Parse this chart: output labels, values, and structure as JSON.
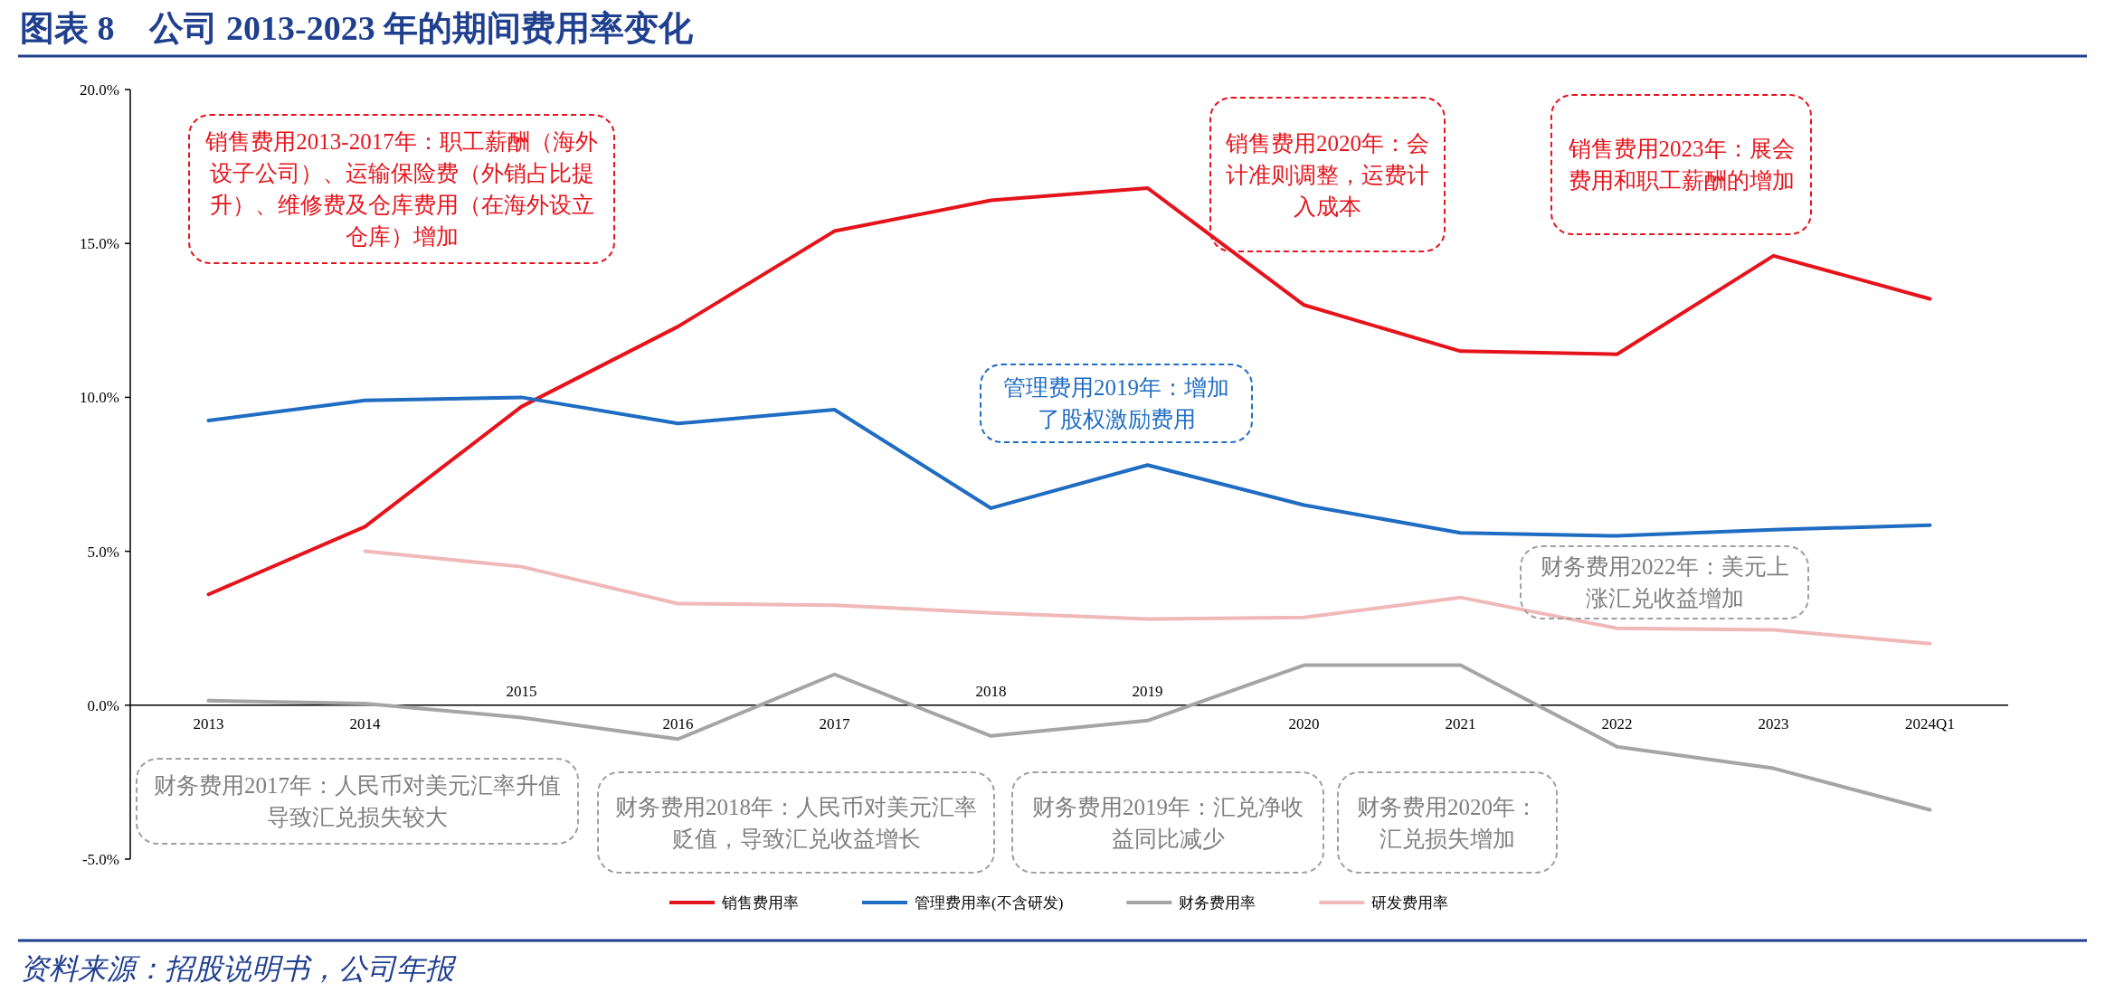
{
  "chart_data": {
    "type": "line",
    "title": "图表 8　公司 2013-2023 年的期间费用率变化",
    "categories": [
      "2013",
      "2014",
      "2015",
      "2016",
      "2017",
      "2018",
      "2019",
      "2020",
      "2021",
      "2022",
      "2023",
      "2024Q1"
    ],
    "series": [
      {
        "name": "销售费用率",
        "color": "#e5141c",
        "values": [
          3.6,
          5.8,
          9.7,
          12.3,
          15.4,
          16.4,
          16.8,
          13.0,
          11.5,
          11.4,
          14.6,
          13.2
        ]
      },
      {
        "name": "管理费用率(不含研发)",
        "color": "#1f6cc3",
        "values": [
          9.25,
          9.9,
          10.0,
          9.15,
          9.6,
          6.4,
          7.8,
          6.5,
          5.6,
          5.5,
          5.7,
          5.85
        ]
      },
      {
        "name": "财务费用率",
        "color": "#a5a5a5",
        "values": [
          0.15,
          0.05,
          -0.4,
          -1.1,
          1.0,
          -1.0,
          -0.5,
          1.3,
          1.3,
          -1.35,
          -2.05,
          -3.4
        ]
      },
      {
        "name": "研发费用率",
        "color": "#f0b8b8",
        "values": [
          null,
          5.0,
          4.5,
          3.3,
          3.25,
          3.0,
          2.8,
          2.85,
          3.5,
          2.5,
          2.45,
          2.0
        ]
      }
    ],
    "ylim": [
      -5,
      20
    ],
    "yticks": [
      {
        "value": -5,
        "label": "-5.0%"
      },
      {
        "value": 0,
        "label": "0.0%"
      },
      {
        "value": 5,
        "label": "5.0%"
      },
      {
        "value": 10,
        "label": "10.0%"
      },
      {
        "value": 15,
        "label": "15.0%"
      },
      {
        "value": 20,
        "label": "20.0%"
      }
    ],
    "legend": "bottom",
    "grid": false,
    "marker": "none",
    "line_style": "solid",
    "annotations": [
      "销售费用2013-2017年：职工薪酬（海外设子公司）、运输保险费（外销占比提升）、维修费及仓库费用（在海外设立仓库）增加",
      "销售费用2020年：会计准则调整，运费计入成本",
      "销售费用2023年：展会费用和职工薪酬的增加",
      "管理费用2019年：增加了股权激励费用",
      "财务费用2017年：人民币对美元汇率升值导致汇兑损失较大",
      "财务费用2022年：美元上涨汇兑收益增加",
      "财务费用2018年：人民币对美元汇率贬值，导致汇兑收益增长",
      "财务费用2019年：汇兑净收益同比减少",
      "财务费用2020年：汇兑损失增加",
      "资料来源：招股说明书，公司年报"
    ]
  }
}
